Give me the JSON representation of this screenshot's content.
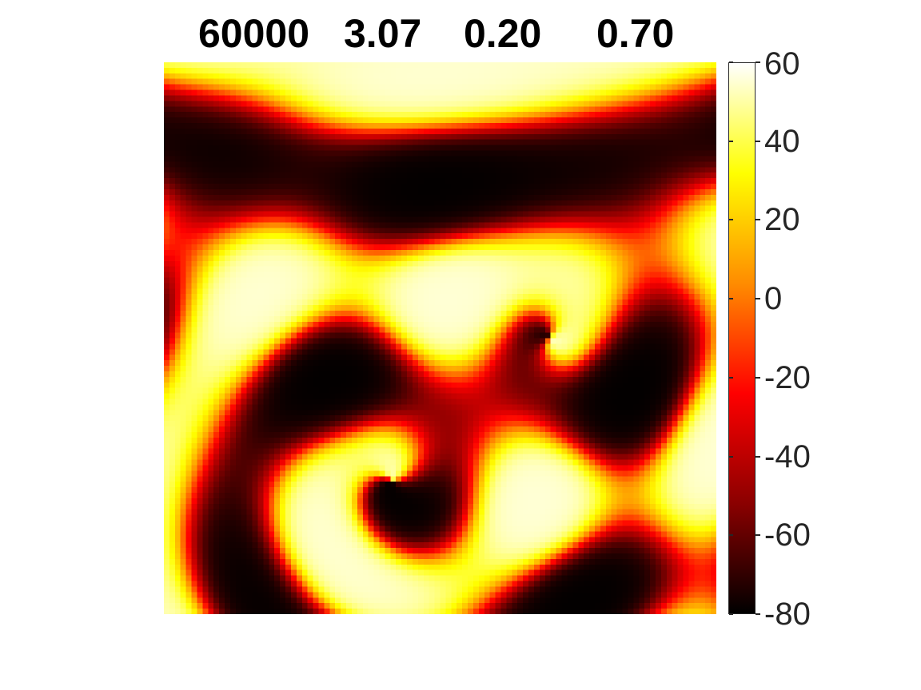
{
  "chart_data": {
    "type": "heatmap",
    "title_parts": [
      "60000",
      "3.07",
      "0.20",
      "0.70"
    ],
    "colormap": "hot",
    "colormap_stops": [
      "#000000",
      "#8b0000",
      "#ff0000",
      "#ff8c00",
      "#ffff00",
      "#ffffff"
    ],
    "clim": [
      -80,
      60
    ],
    "colorbar_ticks": [
      "60",
      "40",
      "20",
      "0",
      "-20",
      "-40",
      "-60",
      "-80"
    ],
    "colorbar_tick_values": [
      60,
      40,
      20,
      0,
      -20,
      -40,
      -60,
      -80
    ],
    "grid": false,
    "grid_size": [
      100,
      100
    ],
    "pattern": "spiral-wave"
  }
}
